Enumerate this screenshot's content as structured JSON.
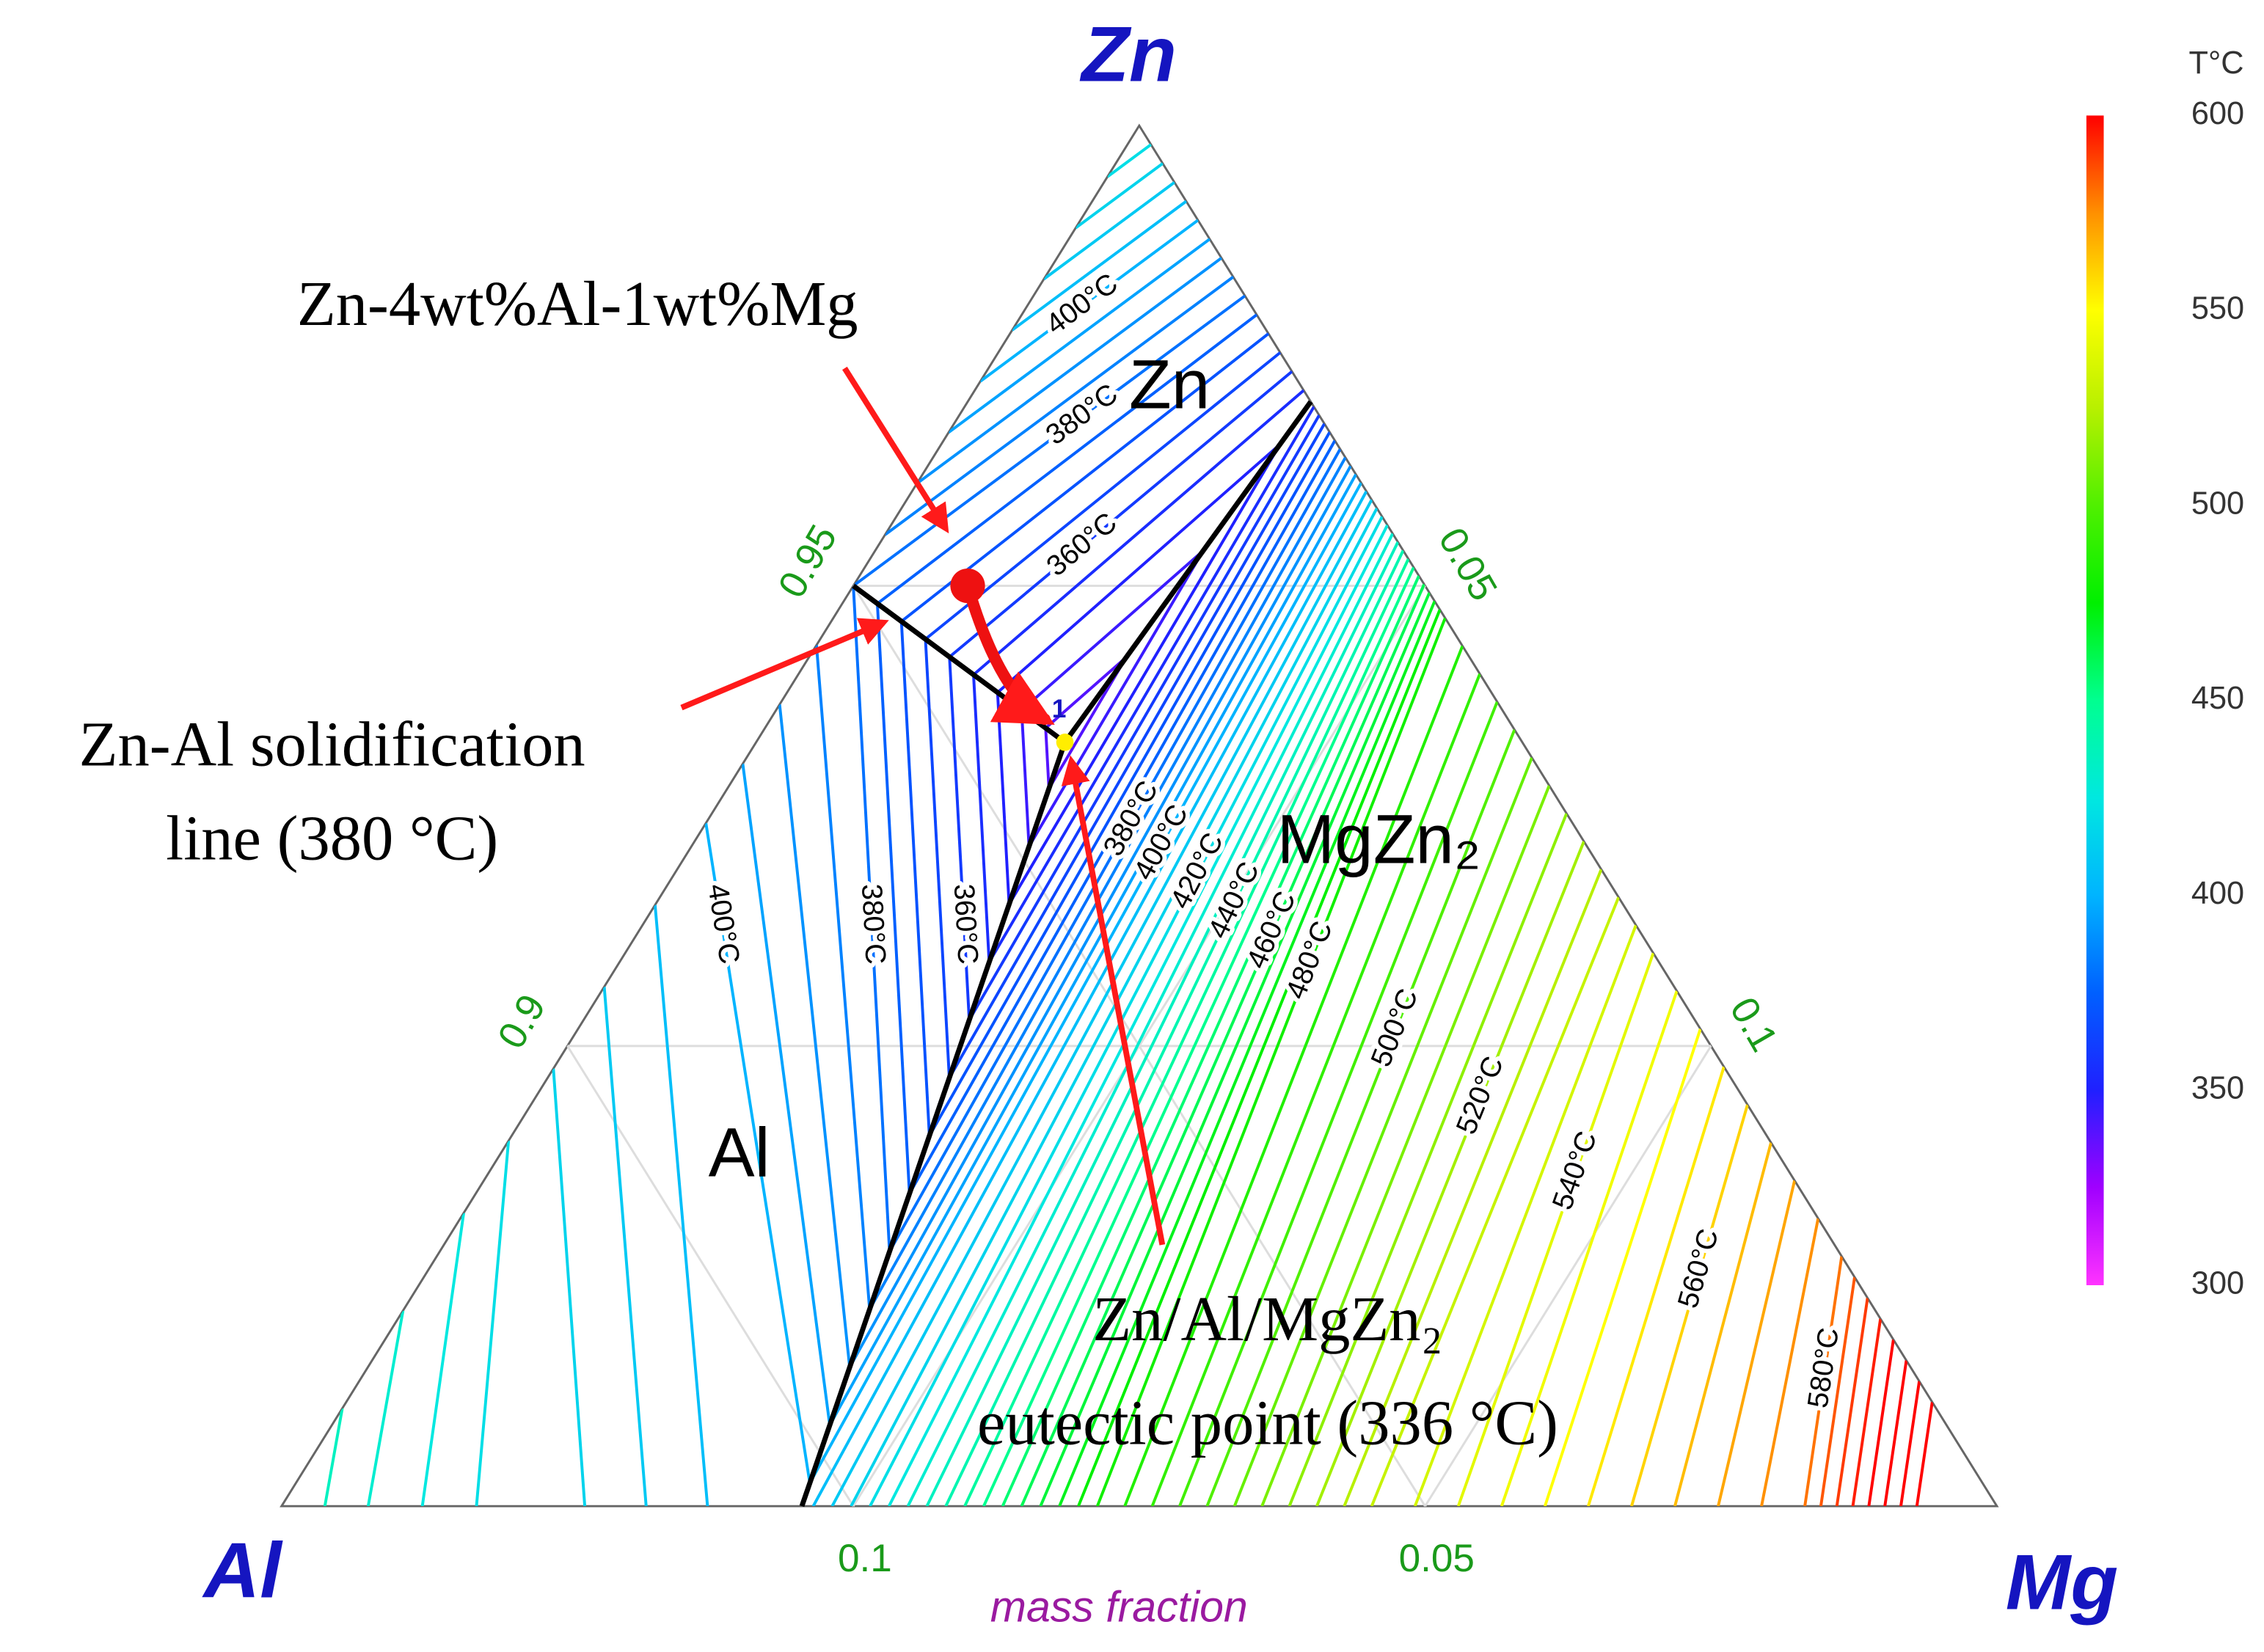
{
  "chart_data": {
    "type": "ternary",
    "corners": {
      "top": "Zn",
      "left": "Al",
      "right": "Mg"
    },
    "axis_label": "mass fraction",
    "zn_axis": {
      "lim": [
        0.85,
        1
      ],
      "ticks": [
        0.9,
        0.95
      ]
    },
    "mg_axis": {
      "lim": [
        0,
        0.15
      ],
      "ticks": [
        0.05,
        0.1
      ]
    },
    "al_axis": {
      "lim": [
        0,
        0.15
      ],
      "ticks": [
        0.05,
        0.1
      ]
    },
    "grid": true,
    "phase_labels": {
      "zn": "Zn",
      "al": "Al",
      "mgzn2": "MgZn₂"
    },
    "boundary_color": "#000000",
    "boundaries": [
      {
        "zn": [
          0.95,
          0.933
        ],
        "mg": [
          0,
          0.027
        ]
      },
      {
        "zn": [
          0.933,
          0.97
        ],
        "mg": [
          0.027,
          0.03
        ]
      },
      {
        "zn": [
          0.933,
          0.85
        ],
        "mg": [
          0.027,
          0.0455
        ]
      }
    ],
    "isotherms": [
      340,
      345,
      350,
      355,
      360,
      365,
      370,
      375,
      380,
      385,
      390,
      395,
      400,
      405,
      410,
      415,
      420,
      425,
      430,
      435,
      440,
      445,
      450,
      455,
      460,
      465,
      470,
      475,
      480,
      485,
      490,
      495,
      500,
      505,
      510,
      515,
      520,
      525,
      530,
      535,
      540,
      545,
      550,
      555,
      560,
      565,
      570,
      575,
      580,
      585,
      590,
      595,
      600,
      605,
      610,
      615
    ],
    "isotherm_labels": {
      "zn": [
        {
          "value": 400,
          "label": "400°C"
        },
        {
          "value": 380,
          "label": "380°C"
        },
        {
          "value": 360,
          "label": "360°C"
        }
      ],
      "al": [
        {
          "value": 400,
          "label": "400°C"
        },
        {
          "value": 380,
          "label": "380°C"
        },
        {
          "value": 360,
          "label": "360°C"
        }
      ],
      "mgzn2": [
        {
          "value": 380,
          "label": "380°C"
        },
        {
          "value": 400,
          "label": "400°C"
        },
        {
          "value": 420,
          "label": "420°C"
        },
        {
          "value": 440,
          "label": "440°C"
        },
        {
          "value": 460,
          "label": "460°C"
        },
        {
          "value": 480,
          "label": "480°C"
        },
        {
          "value": 500,
          "label": "500°C"
        },
        {
          "value": 520,
          "label": "520°C"
        },
        {
          "value": 540,
          "label": "540°C"
        },
        {
          "value": 560,
          "label": "560°C"
        },
        {
          "value": 580,
          "label": "580°C"
        }
      ]
    },
    "colorbar": {
      "title": "T°C",
      "lim": [
        300,
        600
      ],
      "ticks": [
        300,
        350,
        400,
        450,
        500,
        550,
        600
      ],
      "colors": [
        "#ff33ff",
        "#a000ff",
        "#2020ff",
        "#0060ff",
        "#00b4ff",
        "#00e8e0",
        "#00ff90",
        "#00f000",
        "#50f000",
        "#b8f000",
        "#ffff00",
        "#ff9000",
        "#ff0000"
      ]
    },
    "alloy": {
      "label": "Zn-4wt%Al-1wt%Mg",
      "zn": 0.95,
      "al": 0.04,
      "mg": 0.01,
      "color": "#ee1111"
    },
    "eutectic": {
      "marker": "1",
      "zn": 0.933,
      "al": 0.04,
      "mg": 0.027,
      "color": "#ffee00"
    },
    "annotations": {
      "solidification": [
        "Zn-Al solidification",
        "line (380 °C)"
      ],
      "eutectic": [
        "Zn/Al/MgZn₂",
        "eutectic point (336 °C)"
      ]
    }
  }
}
